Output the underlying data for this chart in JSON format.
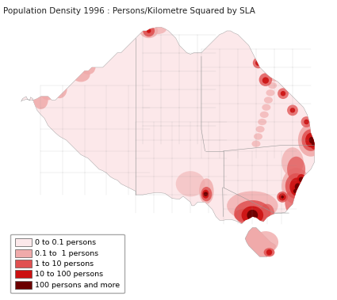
{
  "title": "Population Density 1996 : Persons/Kilometre Squared by SLA",
  "title_fontsize": 7.5,
  "background_color": "#ffffff",
  "legend_items": [
    {
      "label": "0 to 0.1 persons",
      "color": "#fce8ea"
    },
    {
      "label": "0.1 to  1 persons",
      "color": "#f0aaaa"
    },
    {
      "label": "1 to 10 persons",
      "color": "#e05050"
    },
    {
      "label": "10 to 100 persons",
      "color": "#cc1010"
    },
    {
      "label": "100 persons and more",
      "color": "#6b0000"
    }
  ],
  "legend_fontsize": 6.8,
  "map_edge_color": "#999999",
  "map_edge_width": 0.3,
  "xlim": [
    112.5,
    154.5
  ],
  "ylim": [
    -44.5,
    -9.5
  ],
  "figsize": [
    4.25,
    3.79
  ],
  "dpi": 100
}
